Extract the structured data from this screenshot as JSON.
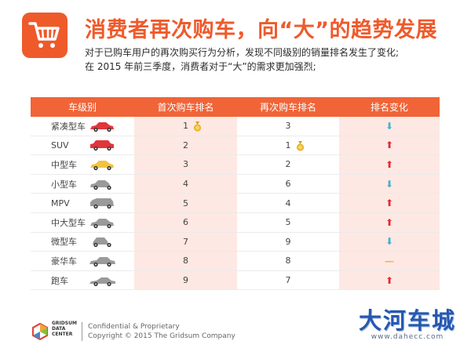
{
  "header": {
    "title": "消费者再次购车，向“大”的趋势发展",
    "subtitle_1": "对于已购车用户的再次购买行为分析，发现不同级别的销量排名发生了变化;",
    "subtitle_2": "在 2015 年前三季度，消费者对于“大”的需求更加强烈;"
  },
  "table": {
    "headers": [
      "车级别",
      "首次购车排名",
      "再次购车排名",
      "排名变化"
    ],
    "rows": [
      {
        "type": "紧凑型车",
        "first": "1",
        "repeat": "3",
        "change": "down",
        "car": "sedan",
        "car_color": "#e3343a",
        "medal": "first"
      },
      {
        "type": "SUV",
        "first": "2",
        "repeat": "1",
        "change": "up",
        "car": "suv",
        "car_color": "#e3343a",
        "medal": "repeat"
      },
      {
        "type": "中型车",
        "first": "3",
        "repeat": "2",
        "change": "up",
        "car": "sedan",
        "car_color": "#f2c33b",
        "medal": ""
      },
      {
        "type": "小型车",
        "first": "4",
        "repeat": "6",
        "change": "down",
        "car": "hatch",
        "car_color": "#9a9a9a",
        "medal": ""
      },
      {
        "type": "MPV",
        "first": "5",
        "repeat": "4",
        "change": "up",
        "car": "mpv",
        "car_color": "#9a9a9a",
        "medal": ""
      },
      {
        "type": "中大型车",
        "first": "6",
        "repeat": "5",
        "change": "up",
        "car": "sedan",
        "car_color": "#9a9a9a",
        "medal": ""
      },
      {
        "type": "微型车",
        "first": "7",
        "repeat": "9",
        "change": "down",
        "car": "mini",
        "car_color": "#9a9a9a",
        "medal": ""
      },
      {
        "type": "豪华车",
        "first": "8",
        "repeat": "8",
        "change": "flat",
        "car": "luxury",
        "car_color": "#9a9a9a",
        "medal": ""
      },
      {
        "type": "跑车",
        "first": "9",
        "repeat": "7",
        "change": "up",
        "car": "sports",
        "car_color": "#9a9a9a",
        "medal": ""
      }
    ],
    "arrow_glyphs": {
      "up": "⬆",
      "down": "⬇",
      "flat": "—"
    },
    "colors": {
      "accent": "#ef5a2b",
      "header_bg": "#f06437",
      "tint": "#fde8e3",
      "up": "#e02a36",
      "down": "#3fb2d4",
      "flat": "#f4b24a"
    }
  },
  "footer": {
    "logo_text": "GRIDSUM DATA CENTER",
    "line_1": "Confidential & Proprietary",
    "line_2": "Copyright © 2015 The Gridsum Company"
  },
  "watermark": {
    "main": "大河车城",
    "url": "www.dahecc.com"
  },
  "icons": {
    "header": "shopping-cart-icon",
    "logo": "gridsum-logo-icon",
    "medal": "gold-medal-icon"
  }
}
